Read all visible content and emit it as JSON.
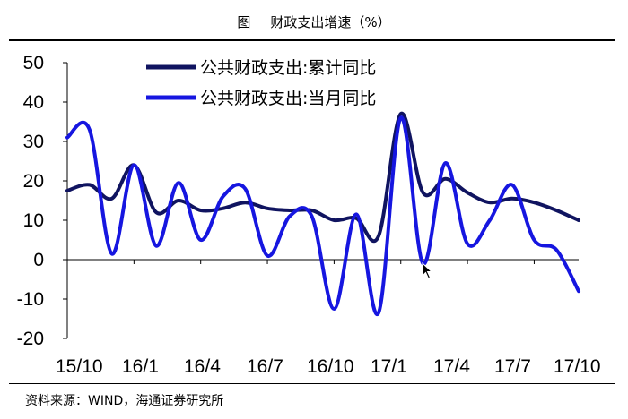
{
  "header": {
    "fig_label": "图",
    "title": "财政支出增速（%）"
  },
  "footer": {
    "source": "资料来源：WIND，海通证券研究所"
  },
  "chart_data": {
    "type": "line",
    "x_ticks": [
      "15/10",
      "16/1",
      "16/4",
      "16/7",
      "16/10",
      "17/1",
      "17/4",
      "17/7",
      "17/10"
    ],
    "y_ticks": [
      "50",
      "40",
      "30",
      "20",
      "10",
      "0",
      "-10",
      "-20"
    ],
    "ylim": [
      -20,
      50
    ],
    "legend_position": "top-center",
    "colors": {
      "cumulative": "#101460",
      "monthly": "#1616e0"
    },
    "series": [
      {
        "name": "公共财政支出:累计同比",
        "color": "#101460",
        "values": [
          17.5,
          19,
          15.5,
          24,
          12,
          15,
          12.5,
          13,
          14.5,
          13,
          12.5,
          12.5,
          10,
          10.5,
          6,
          37,
          17,
          20.5,
          17,
          14.5,
          15.5,
          14.5,
          12.5,
          10
        ]
      },
      {
        "name": "公共财政支出:当月同比",
        "color": "#1616e0",
        "values": [
          31,
          33,
          1.5,
          24,
          3.5,
          19.5,
          5,
          16,
          18,
          1,
          11,
          11,
          -12.5,
          11.5,
          -13.5,
          36,
          -1,
          24.5,
          4,
          10,
          19,
          5,
          2.5,
          -8
        ]
      }
    ]
  }
}
